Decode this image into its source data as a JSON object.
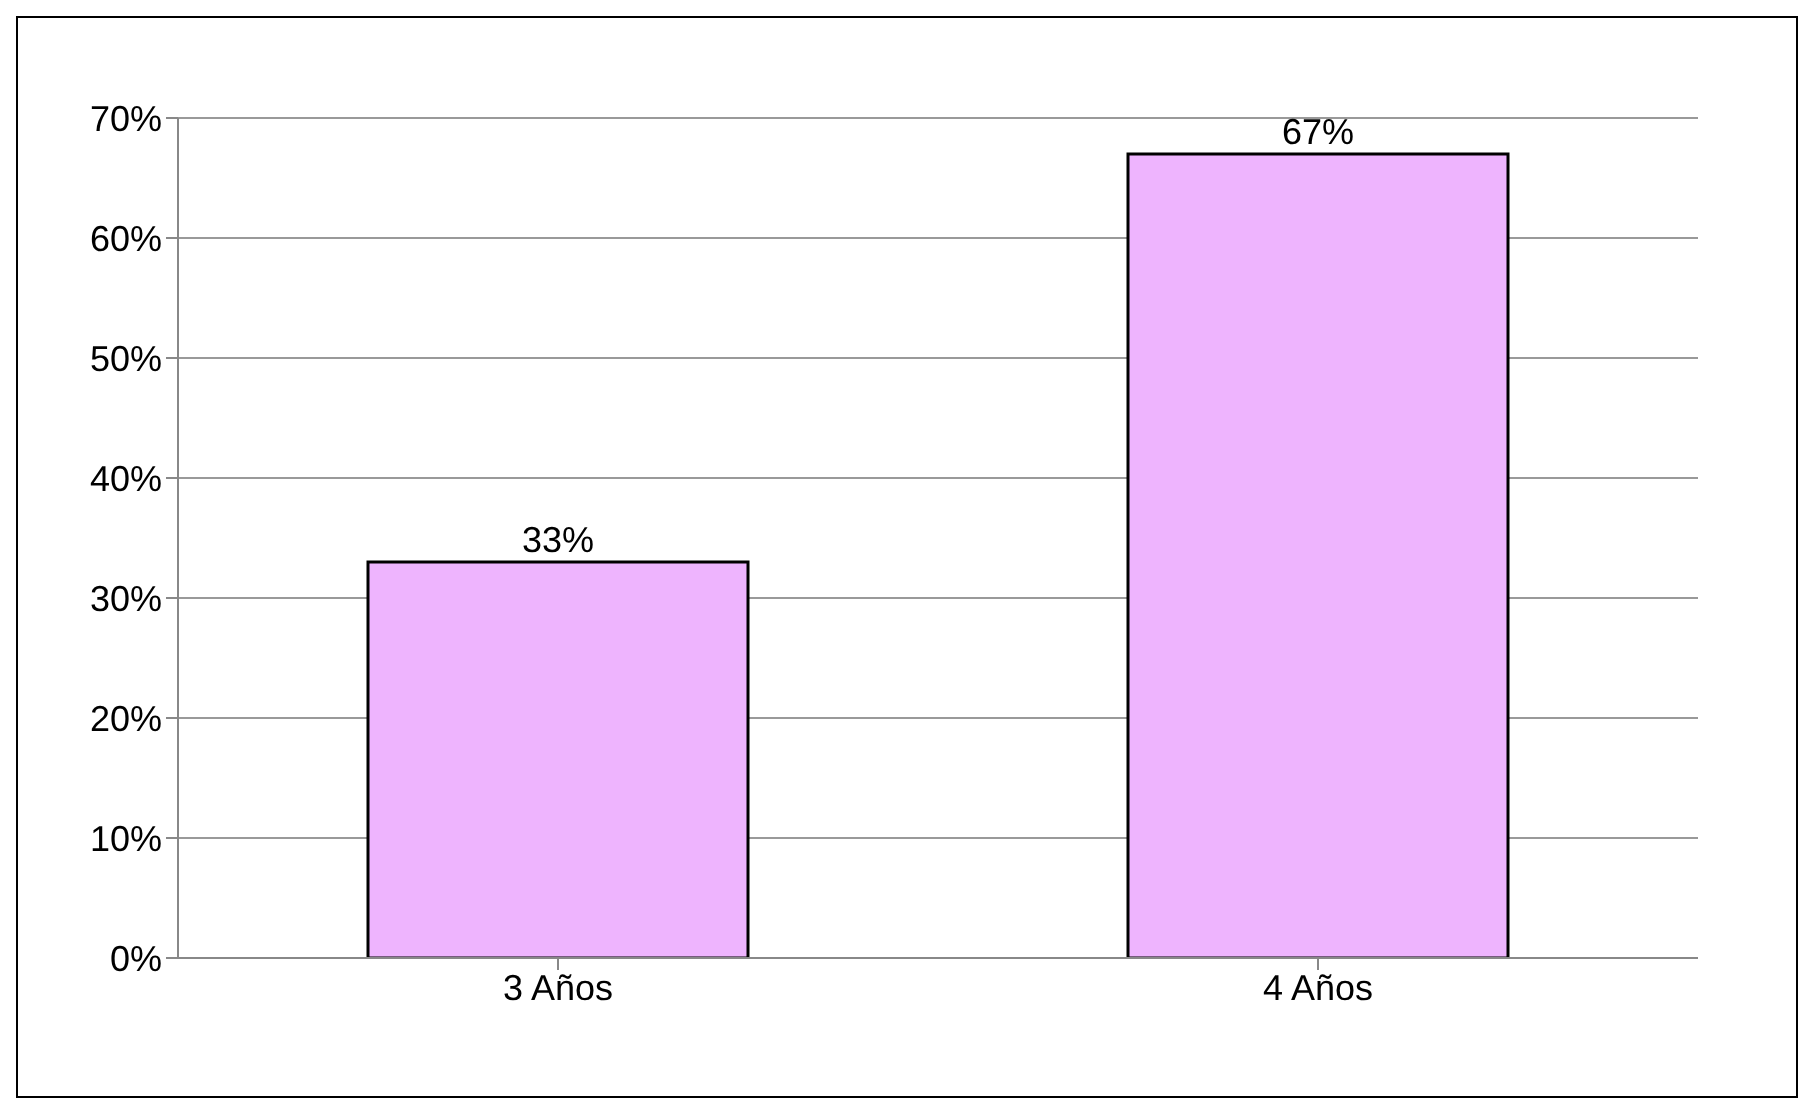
{
  "chart_data": {
    "type": "bar",
    "categories": [
      "3 Años",
      "4 Años"
    ],
    "values": [
      33,
      67
    ],
    "color": "#eeb4fe",
    "value_labels": [
      "33%",
      "67%"
    ],
    "ylim": [
      0,
      70
    ],
    "yticks": [
      {
        "value": 0,
        "label": "0%"
      },
      {
        "value": 10,
        "label": "10%"
      },
      {
        "value": 20,
        "label": "20%"
      },
      {
        "value": 30,
        "label": "30%"
      },
      {
        "value": 40,
        "label": "40%"
      },
      {
        "value": 50,
        "label": "50%"
      },
      {
        "value": 60,
        "label": "60%"
      },
      {
        "value": 70,
        "label": "70%"
      }
    ],
    "grid": "y"
  }
}
